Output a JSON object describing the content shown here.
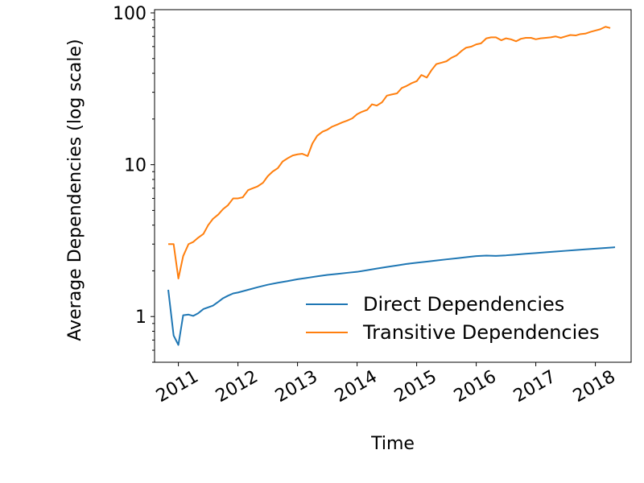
{
  "chart_data": {
    "type": "line",
    "title": "",
    "xlabel": "Time",
    "ylabel": "Average Dependencies (log scale)",
    "yscale": "log",
    "xlim": [
      2010.6,
      2018.6
    ],
    "ylim": [
      0.5,
      105
    ],
    "x_ticks": [
      "2011",
      "2012",
      "2013",
      "2014",
      "2015",
      "2016",
      "2017",
      "2018"
    ],
    "y_ticks": [
      "1",
      "10",
      "100"
    ],
    "grid": false,
    "legend_position": "lower-right",
    "series": [
      {
        "name": "Direct Dependencies",
        "color": "#1f77b4",
        "points": [
          [
            2010.83,
            1.5
          ],
          [
            2010.92,
            0.75
          ],
          [
            2011.0,
            0.65
          ],
          [
            2011.08,
            1.02
          ],
          [
            2011.17,
            1.03
          ],
          [
            2011.25,
            1.01
          ],
          [
            2011.33,
            1.05
          ],
          [
            2011.42,
            1.12
          ],
          [
            2011.5,
            1.15
          ],
          [
            2011.58,
            1.18
          ],
          [
            2011.67,
            1.25
          ],
          [
            2011.75,
            1.32
          ],
          [
            2011.83,
            1.37
          ],
          [
            2011.92,
            1.42
          ],
          [
            2012.0,
            1.44
          ],
          [
            2012.17,
            1.5
          ],
          [
            2012.33,
            1.56
          ],
          [
            2012.5,
            1.62
          ],
          [
            2012.67,
            1.67
          ],
          [
            2012.83,
            1.71
          ],
          [
            2013.0,
            1.76
          ],
          [
            2013.17,
            1.8
          ],
          [
            2013.33,
            1.84
          ],
          [
            2013.5,
            1.88
          ],
          [
            2013.67,
            1.91
          ],
          [
            2013.83,
            1.94
          ],
          [
            2014.0,
            1.97
          ],
          [
            2014.17,
            2.02
          ],
          [
            2014.33,
            2.07
          ],
          [
            2014.5,
            2.12
          ],
          [
            2014.67,
            2.17
          ],
          [
            2014.83,
            2.22
          ],
          [
            2015.0,
            2.26
          ],
          [
            2015.17,
            2.3
          ],
          [
            2015.33,
            2.34
          ],
          [
            2015.5,
            2.38
          ],
          [
            2015.67,
            2.42
          ],
          [
            2015.83,
            2.46
          ],
          [
            2016.0,
            2.5
          ],
          [
            2016.17,
            2.52
          ],
          [
            2016.33,
            2.51
          ],
          [
            2016.5,
            2.53
          ],
          [
            2016.67,
            2.56
          ],
          [
            2016.83,
            2.59
          ],
          [
            2017.0,
            2.62
          ],
          [
            2017.17,
            2.65
          ],
          [
            2017.33,
            2.68
          ],
          [
            2017.5,
            2.71
          ],
          [
            2017.67,
            2.74
          ],
          [
            2017.83,
            2.77
          ],
          [
            2018.0,
            2.8
          ],
          [
            2018.17,
            2.83
          ],
          [
            2018.33,
            2.86
          ]
        ]
      },
      {
        "name": "Transitive Dependencies",
        "color": "#ff7f0e",
        "points": [
          [
            2010.83,
            3.0
          ],
          [
            2010.92,
            3.0
          ],
          [
            2011.0,
            1.78
          ],
          [
            2011.08,
            2.5
          ],
          [
            2011.17,
            3.0
          ],
          [
            2011.25,
            3.1
          ],
          [
            2011.33,
            3.3
          ],
          [
            2011.42,
            3.5
          ],
          [
            2011.5,
            4.0
          ],
          [
            2011.58,
            4.4
          ],
          [
            2011.67,
            4.7
          ],
          [
            2011.75,
            5.1
          ],
          [
            2011.83,
            5.4
          ],
          [
            2011.92,
            6.0
          ],
          [
            2012.0,
            6.0
          ],
          [
            2012.08,
            6.1
          ],
          [
            2012.17,
            6.8
          ],
          [
            2012.25,
            7.0
          ],
          [
            2012.33,
            7.2
          ],
          [
            2012.42,
            7.6
          ],
          [
            2012.5,
            8.4
          ],
          [
            2012.58,
            9.0
          ],
          [
            2012.67,
            9.5
          ],
          [
            2012.75,
            10.5
          ],
          [
            2012.83,
            11.0
          ],
          [
            2012.92,
            11.5
          ],
          [
            2013.0,
            11.7
          ],
          [
            2013.08,
            11.8
          ],
          [
            2013.17,
            11.4
          ],
          [
            2013.25,
            13.8
          ],
          [
            2013.33,
            15.5
          ],
          [
            2013.42,
            16.5
          ],
          [
            2013.5,
            17.0
          ],
          [
            2013.58,
            17.8
          ],
          [
            2013.67,
            18.4
          ],
          [
            2013.75,
            19.0
          ],
          [
            2013.83,
            19.5
          ],
          [
            2013.92,
            20.2
          ],
          [
            2014.0,
            21.5
          ],
          [
            2014.08,
            22.3
          ],
          [
            2014.17,
            23.0
          ],
          [
            2014.25,
            25.0
          ],
          [
            2014.33,
            24.5
          ],
          [
            2014.42,
            25.8
          ],
          [
            2014.5,
            28.5
          ],
          [
            2014.58,
            29.0
          ],
          [
            2014.67,
            29.5
          ],
          [
            2014.75,
            32.0
          ],
          [
            2014.83,
            33.0
          ],
          [
            2014.92,
            34.5
          ],
          [
            2015.0,
            35.5
          ],
          [
            2015.08,
            39.0
          ],
          [
            2015.17,
            37.5
          ],
          [
            2015.25,
            42.0
          ],
          [
            2015.33,
            46.0
          ],
          [
            2015.42,
            47.0
          ],
          [
            2015.5,
            48.0
          ],
          [
            2015.58,
            50.5
          ],
          [
            2015.67,
            52.5
          ],
          [
            2015.75,
            56.0
          ],
          [
            2015.83,
            59.0
          ],
          [
            2015.92,
            60.0
          ],
          [
            2016.0,
            62.0
          ],
          [
            2016.08,
            63.0
          ],
          [
            2016.17,
            68.0
          ],
          [
            2016.25,
            69.0
          ],
          [
            2016.33,
            69.0
          ],
          [
            2016.42,
            66.0
          ],
          [
            2016.5,
            68.0
          ],
          [
            2016.58,
            67.0
          ],
          [
            2016.67,
            65.0
          ],
          [
            2016.75,
            67.5
          ],
          [
            2016.83,
            68.5
          ],
          [
            2016.92,
            68.5
          ],
          [
            2017.0,
            67.0
          ],
          [
            2017.08,
            68.0
          ],
          [
            2017.17,
            68.5
          ],
          [
            2017.25,
            69.0
          ],
          [
            2017.33,
            70.0
          ],
          [
            2017.42,
            68.5
          ],
          [
            2017.5,
            70.0
          ],
          [
            2017.58,
            71.5
          ],
          [
            2017.67,
            71.0
          ],
          [
            2017.75,
            72.5
          ],
          [
            2017.83,
            73.0
          ],
          [
            2017.92,
            75.0
          ],
          [
            2018.0,
            76.5
          ],
          [
            2018.08,
            78.0
          ],
          [
            2018.17,
            81.0
          ],
          [
            2018.25,
            79.5
          ]
        ]
      }
    ]
  }
}
